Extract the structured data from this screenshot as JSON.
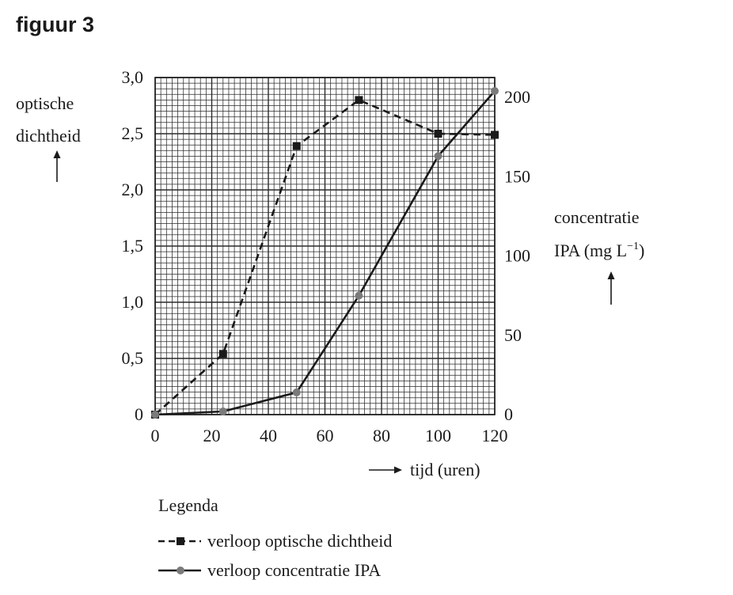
{
  "figure_label": "figuur 3",
  "chart_data": {
    "type": "line",
    "x_label": "tijd (uren)",
    "x_ticks": [
      0,
      20,
      40,
      60,
      80,
      100,
      120
    ],
    "x_tick_labels": [
      "0",
      "20",
      "40",
      "60",
      "80",
      "100",
      "120"
    ],
    "xlim": [
      0,
      120
    ],
    "left_axis": {
      "label_lines": [
        "optische",
        "dichtheid"
      ],
      "ticks": [
        0,
        0.5,
        1.0,
        1.5,
        2.0,
        2.5,
        3.0
      ],
      "tick_labels": [
        "0",
        "0,5",
        "1,0",
        "1,5",
        "2,0",
        "2,5",
        "3,0"
      ],
      "ylim": [
        0,
        3.0
      ]
    },
    "right_axis": {
      "label_lines": [
        "concentratie",
        "IPA (mg L"
      ],
      "unit_superscript": "−1",
      "label_close": ")",
      "ticks": [
        0,
        50,
        100,
        150,
        200
      ],
      "tick_labels": [
        "0",
        "50",
        "100",
        "150",
        "200"
      ],
      "ylim": [
        0,
        212.5
      ]
    },
    "grid": true,
    "legend_title": "Legenda",
    "series": [
      {
        "name": "verloop optische dichtheid",
        "axis": "left",
        "style": "dashed",
        "marker": "square",
        "color": "#1a1a1a",
        "x": [
          0,
          24,
          50,
          72,
          100,
          120
        ],
        "y": [
          0,
          0.54,
          2.39,
          2.8,
          2.5,
          2.49
        ]
      },
      {
        "name": "verloop concentratie IPA",
        "axis": "right",
        "style": "solid",
        "marker": "circle",
        "color": "#1a1a1a",
        "marker_color": "#7a7a7a",
        "x": [
          0,
          24,
          50,
          72,
          100,
          120
        ],
        "y": [
          0,
          2,
          14,
          75,
          163,
          204
        ]
      }
    ]
  }
}
